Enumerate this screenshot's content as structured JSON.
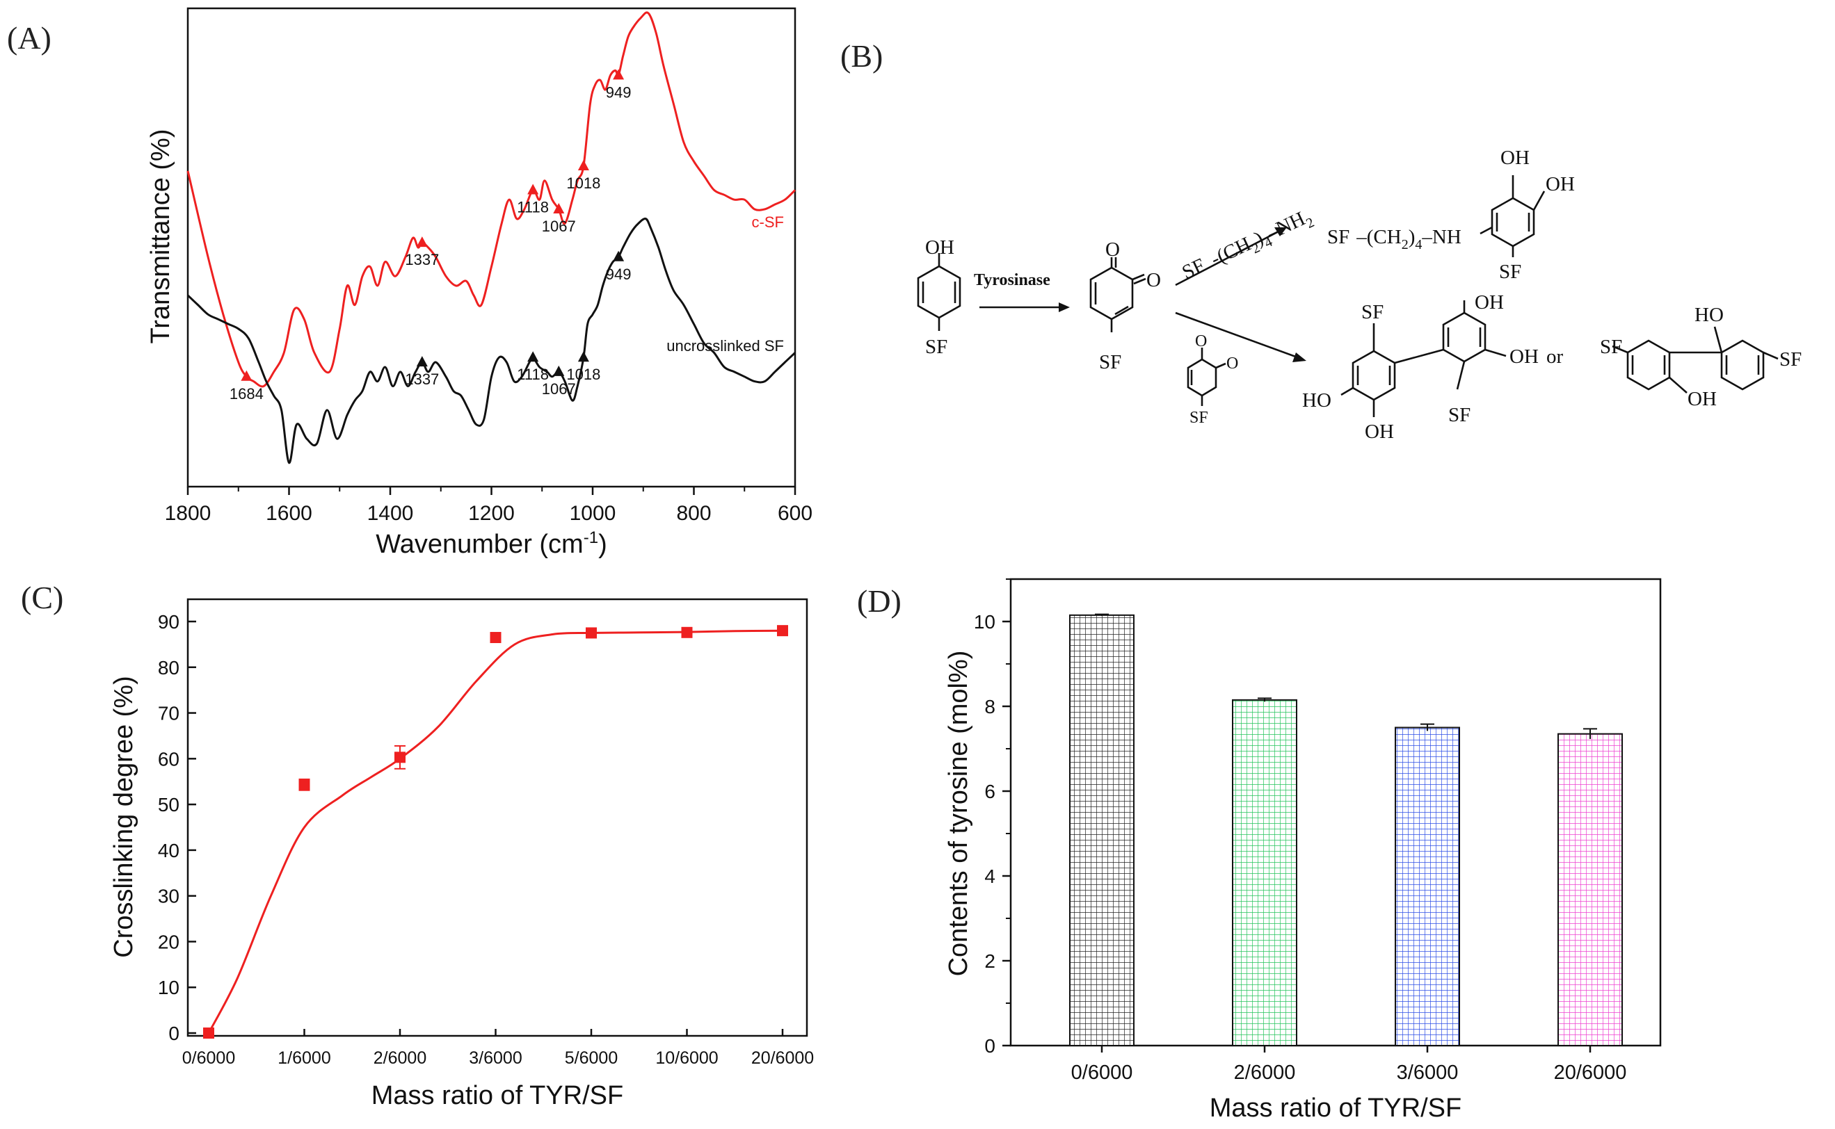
{
  "panel_labels": {
    "a": "(A)",
    "b": "(B)",
    "c": "(C)",
    "d": "(D)"
  },
  "colors": {
    "red": "#ee2020",
    "black": "#111111",
    "pat_d1": "#222222",
    "pat_d2": "#23c45a",
    "pat_d3": "#2c4de6",
    "pat_d4": "#ee3fd0"
  },
  "chart_data": [
    {
      "panel": "(A)",
      "type": "line",
      "title": "",
      "xlabel": "Wavenumber (cm-1)",
      "xlabel_main": "Wavenumber (cm",
      "xlabel_sup": "-1",
      "xlabel_tail": ")",
      "ylabel": "Transmittance (%)",
      "xlim": [
        1800,
        600
      ],
      "ylim": [
        0,
        100
      ],
      "xticks": [
        1800,
        1600,
        1400,
        1200,
        1000,
        800,
        600
      ],
      "series": [
        {
          "name": "c-SF",
          "color": "#ee2020",
          "x": [
            1800,
            1760,
            1730,
            1700,
            1684,
            1670,
            1650,
            1630,
            1610,
            1590,
            1570,
            1550,
            1520,
            1500,
            1485,
            1470,
            1455,
            1440,
            1425,
            1410,
            1390,
            1370,
            1355,
            1345,
            1337,
            1325,
            1310,
            1290,
            1270,
            1250,
            1235,
            1220,
            1200,
            1180,
            1165,
            1150,
            1135,
            1118,
            1105,
            1095,
            1080,
            1067,
            1055,
            1040,
            1030,
            1018,
            1005,
            995,
            985,
            975,
            965,
            955,
            949,
            940,
            930,
            920,
            905,
            890,
            875,
            860,
            840,
            820,
            800,
            780,
            760,
            740,
            720,
            700,
            680,
            660,
            640,
            620,
            600
          ],
          "y": [
            66,
            48,
            36,
            26,
            23,
            22,
            21,
            24,
            28,
            37,
            35,
            28,
            24,
            33,
            42,
            38,
            44,
            46,
            42,
            47,
            44,
            48,
            52,
            50,
            51,
            50,
            48,
            44,
            42,
            43,
            40,
            38,
            46,
            55,
            60,
            56,
            58,
            62,
            60,
            64,
            60,
            58,
            55,
            60,
            64,
            67,
            80,
            84,
            85,
            83,
            86,
            87,
            86,
            90,
            94,
            96,
            98,
            99,
            95,
            88,
            80,
            72,
            68,
            65,
            62,
            61,
            60,
            60,
            58,
            58,
            59,
            60,
            62
          ],
          "markers": [
            {
              "x": 1684,
              "label": "1684"
            },
            {
              "x": 1337,
              "label": "1337"
            },
            {
              "x": 1118,
              "label": "1118"
            },
            {
              "x": 1067,
              "label": "1067"
            },
            {
              "x": 1018,
              "label": "1018"
            },
            {
              "x": 949,
              "label": "949"
            }
          ],
          "legend_text": "c-SF"
        },
        {
          "name": "uncrosslinked SF",
          "color": "#111111",
          "x": [
            1800,
            1780,
            1760,
            1740,
            1720,
            1700,
            1680,
            1660,
            1645,
            1630,
            1615,
            1600,
            1585,
            1565,
            1545,
            1525,
            1505,
            1485,
            1470,
            1455,
            1440,
            1425,
            1410,
            1395,
            1380,
            1365,
            1350,
            1337,
            1325,
            1310,
            1290,
            1275,
            1260,
            1245,
            1230,
            1215,
            1200,
            1185,
            1170,
            1155,
            1140,
            1125,
            1118,
            1105,
            1090,
            1080,
            1067,
            1055,
            1040,
            1030,
            1018,
            1010,
            1000,
            990,
            980,
            970,
            960,
            949,
            940,
            925,
            910,
            895,
            885,
            870,
            855,
            840,
            820,
            800,
            780,
            760,
            740,
            720,
            700,
            680,
            660,
            640,
            620,
            600
          ],
          "y": [
            40,
            38,
            36,
            35,
            34,
            33,
            31,
            26,
            22,
            19,
            16,
            5,
            13,
            10,
            9,
            16,
            10,
            15,
            18,
            20,
            24,
            22,
            25,
            21,
            24,
            21,
            24,
            26,
            24,
            26,
            23,
            20,
            19,
            16,
            13,
            14,
            23,
            27,
            26,
            22,
            23,
            26,
            27,
            25,
            24,
            23,
            24,
            22,
            18,
            21,
            27,
            34,
            36,
            38,
            42,
            45,
            47,
            48,
            50,
            53,
            55,
            56,
            54,
            50,
            45,
            41,
            38,
            34,
            30,
            28,
            25,
            24,
            23,
            22,
            22,
            24,
            26,
            28
          ],
          "markers": [
            {
              "x": 1337,
              "label": "1337"
            },
            {
              "x": 1118,
              "label": "1118"
            },
            {
              "x": 1067,
              "label": "1067"
            },
            {
              "x": 1018,
              "label": "1018"
            },
            {
              "x": 949,
              "label": "949"
            }
          ],
          "legend_text": "uncrosslinked SF"
        }
      ]
    },
    {
      "panel": "(C)",
      "type": "scatter",
      "title": "",
      "xlabel": "Mass ratio of TYR/SF",
      "ylabel": "Crosslinking degree (%)",
      "categories": [
        "0/6000",
        "1/6000",
        "2/6000",
        "3/6000",
        "5/6000",
        "10/6000",
        "20/6000"
      ],
      "values": [
        0,
        54.3,
        60.3,
        86.5,
        87.5,
        87.6,
        88.0
      ],
      "errors": [
        0.3,
        1.2,
        2.5,
        0.4,
        0.3,
        0.3,
        0.3
      ],
      "fit_curve": [
        0,
        12,
        30,
        45,
        52,
        56,
        60,
        67,
        77,
        85,
        87.2,
        87.5,
        87.6,
        87.7,
        87.9,
        88
      ],
      "fit_x": [
        0,
        0.3,
        0.65,
        1,
        1.4,
        1.7,
        2,
        2.4,
        2.8,
        3.2,
        3.6,
        4,
        4.5,
        5,
        5.5,
        6
      ],
      "ylim": [
        0,
        90
      ],
      "yticks": [
        0,
        10,
        20,
        30,
        40,
        50,
        60,
        70,
        80,
        90
      ],
      "color": "#ee2020"
    },
    {
      "panel": "(D)",
      "type": "bar",
      "title": "",
      "xlabel": "Mass ratio of TYR/SF",
      "ylabel": "Contents of tyrosine (mol%)",
      "categories": [
        "0/6000",
        "2/6000",
        "3/6000",
        "20/6000"
      ],
      "values": [
        10.15,
        8.15,
        7.5,
        7.35
      ],
      "errors": [
        0.02,
        0.04,
        0.08,
        0.12
      ],
      "ylim": [
        0,
        11
      ],
      "yticks": [
        0,
        2,
        4,
        6,
        8,
        10
      ]
    }
  ],
  "scheme_b": {
    "oh": "OH",
    "sf": "SF",
    "ho": "HO",
    "o": "O",
    "tyrosinase": "Tyrosinase",
    "or": "or",
    "amine_reagent_sf": "SF",
    "amine_reagent_chain": "-(CH",
    "amine_reagent_sub1": "2",
    "amine_reagent_close": ")",
    "amine_reagent_sub2": "4",
    "amine_reagent_end": "–NH",
    "amine_reagent_sub3": "2",
    "product_sf": "SF",
    "product_chain": "–(CH",
    "product_sub1": "2",
    "product_close": ")",
    "product_sub2": "4",
    "product_nh": "–NH"
  }
}
